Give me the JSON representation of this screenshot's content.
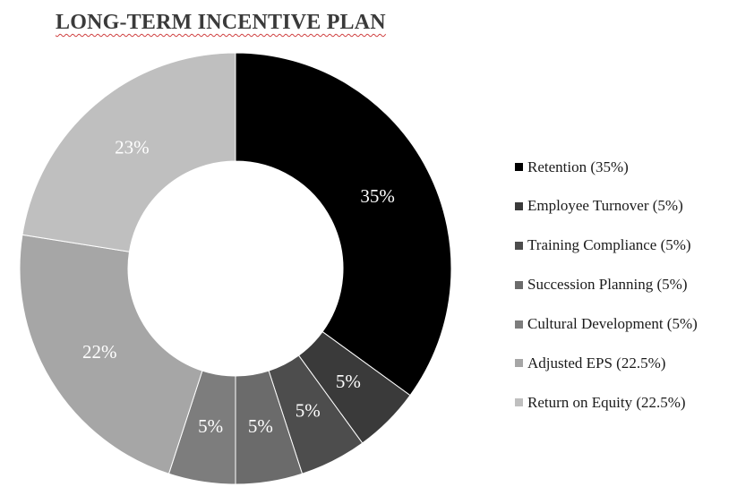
{
  "chart_data": {
    "type": "pie",
    "title": "LONG-TERM INCENTIVE PLAN",
    "categories": [
      "Retention (35%)",
      "Employee Turnover (5%)",
      "Training Compliance (5%)",
      "Succession Planning (5%)",
      "Cultural Development (5%)",
      "Adjusted EPS (22.5%)",
      "Return on Equity (22.5%)"
    ],
    "values": [
      35,
      5,
      5,
      5,
      5,
      22.5,
      22.5
    ],
    "data_labels": [
      "35%",
      "5%",
      "5%",
      "5%",
      "5%",
      "22%",
      "23%"
    ],
    "colors": [
      "#000000",
      "#3a3a3a",
      "#4d4d4d",
      "#6b6b6b",
      "#7d7d7d",
      "#a6a6a6",
      "#bfbfbf"
    ],
    "donut": true,
    "legend_position": "right",
    "start_angle": "top, clockwise"
  }
}
